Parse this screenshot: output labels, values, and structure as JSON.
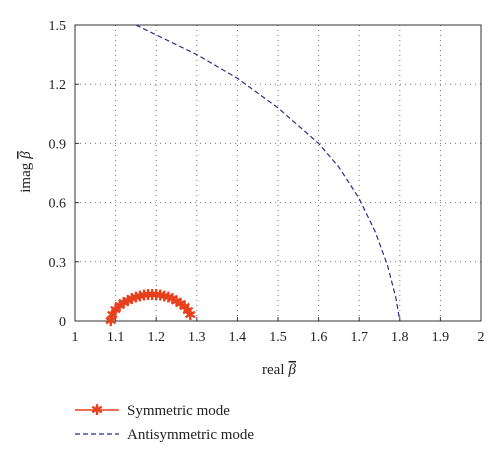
{
  "chart_data": {
    "type": "line",
    "xlabel": "real",
    "ylabel": "imag",
    "xlabel_symbol": "β",
    "ylabel_symbol": "β",
    "xlim": [
      1,
      2
    ],
    "ylim": [
      0,
      1.5
    ],
    "xticks": [
      "1",
      "1.1",
      "1.2",
      "1.3",
      "1.4",
      "1.5",
      "1.6",
      "1.7",
      "1.8",
      "1.9",
      "2"
    ],
    "yticks": [
      "0",
      "0.3",
      "0.6",
      "0.9",
      "1.2",
      "1.5"
    ],
    "grid": true,
    "legend_position": "bottom",
    "series": [
      {
        "name": "Symmetric mode",
        "style": "line-star",
        "color": "#e8401c",
        "x": [
          1.088,
          1.092,
          1.1,
          1.11,
          1.12,
          1.13,
          1.14,
          1.15,
          1.16,
          1.17,
          1.18,
          1.19,
          1.2,
          1.21,
          1.22,
          1.23,
          1.24,
          1.25,
          1.26,
          1.27,
          1.278,
          1.284
        ],
        "y": [
          0.0,
          0.03,
          0.055,
          0.075,
          0.09,
          0.102,
          0.112,
          0.119,
          0.125,
          0.129,
          0.131,
          0.132,
          0.131,
          0.129,
          0.125,
          0.119,
          0.111,
          0.1,
          0.087,
          0.07,
          0.05,
          0.03
        ]
      },
      {
        "name": "Antisymmetric mode",
        "style": "dashed",
        "color": "#2b2b8a",
        "x": [
          1.15,
          1.2,
          1.3,
          1.4,
          1.5,
          1.6,
          1.65,
          1.7,
          1.74,
          1.77,
          1.79,
          1.8
        ],
        "y": [
          1.5,
          1.45,
          1.35,
          1.23,
          1.08,
          0.9,
          0.78,
          0.62,
          0.45,
          0.28,
          0.12,
          0.0
        ]
      }
    ]
  }
}
